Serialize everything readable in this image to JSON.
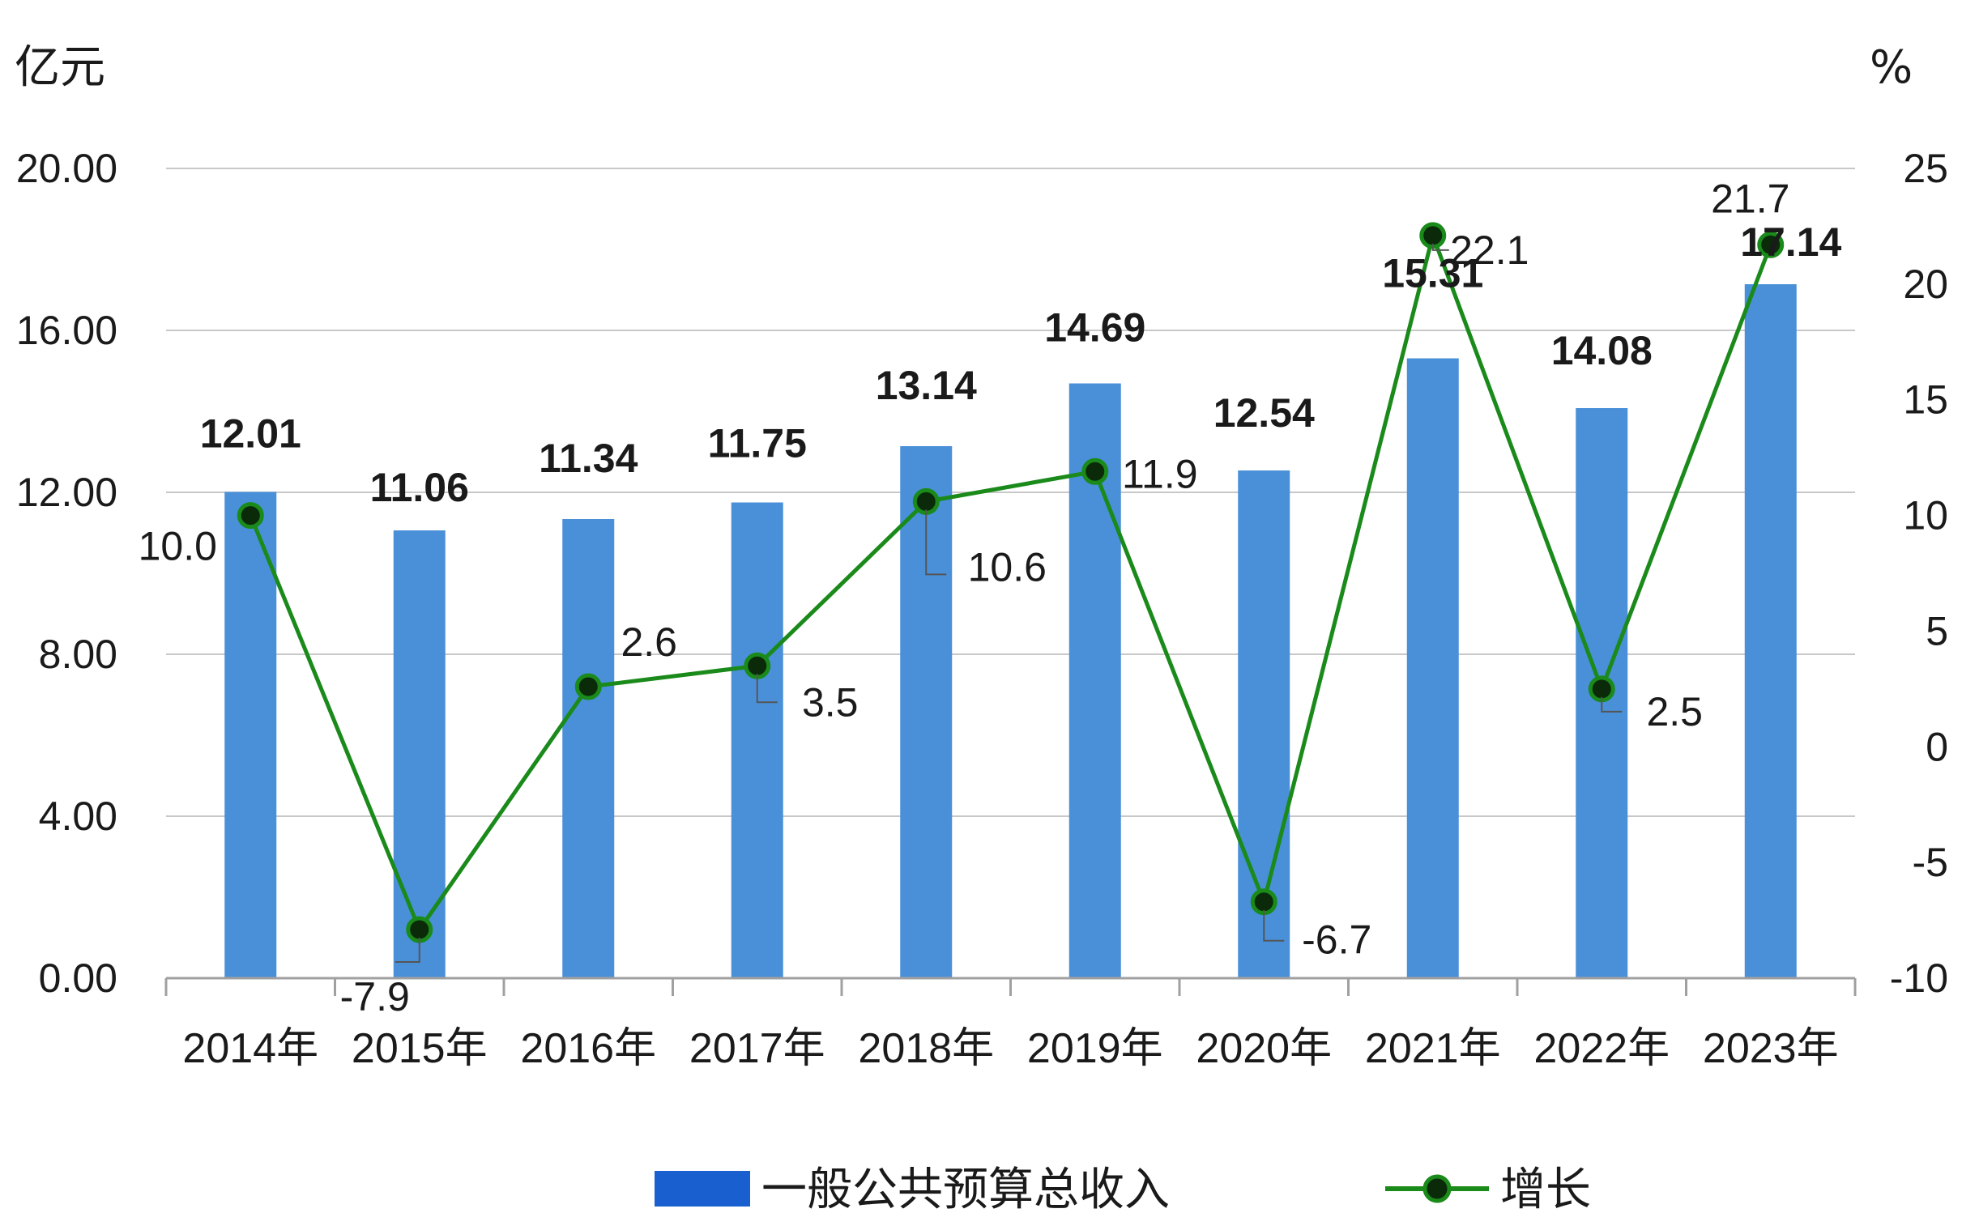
{
  "chart_data": {
    "type": "bar",
    "categories": [
      "2014年",
      "2015年",
      "2016年",
      "2017年",
      "2018年",
      "2019年",
      "2020年",
      "2021年",
      "2022年",
      "2023年"
    ],
    "series": [
      {
        "name": "一般公共预算总收入",
        "type": "bar",
        "axis": "left",
        "color": "#4a90d9",
        "values": [
          12.01,
          11.06,
          11.34,
          11.75,
          13.14,
          14.69,
          12.54,
          15.31,
          14.08,
          17.14
        ]
      },
      {
        "name": "增长",
        "type": "line",
        "axis": "right",
        "color": "#1a8a1a",
        "marker_color": "#0a2a0a",
        "values": [
          10.0,
          -7.9,
          2.6,
          3.5,
          10.6,
          11.9,
          -6.7,
          22.1,
          2.5,
          21.7
        ]
      }
    ],
    "y_left": {
      "unit": "亿元",
      "range": [
        0,
        20
      ],
      "ticks": [
        "0.00",
        "4.00",
        "8.00",
        "12.00",
        "16.00",
        "20.00"
      ],
      "tick_values": [
        0,
        4,
        8,
        12,
        16,
        20
      ]
    },
    "y_right": {
      "unit": "%",
      "range": [
        -10,
        25
      ],
      "ticks": [
        "-10",
        "-5",
        "0",
        "5",
        "10",
        "15",
        "20",
        "25"
      ],
      "tick_values": [
        -10,
        -5,
        0,
        5,
        10,
        15,
        20,
        25
      ]
    },
    "bar_labels": [
      "12.01",
      "11.06",
      "11.34",
      "11.75",
      "13.14",
      "14.69",
      "12.54",
      "15.31",
      "14.08",
      "17.14"
    ],
    "line_labels": [
      "10.0",
      "-7.9",
      "2.6",
      "3.5",
      "10.6",
      "11.9",
      "-6.7",
      "22.1",
      "2.5",
      "21.7"
    ],
    "grid": true,
    "legend": {
      "position": "bottom",
      "items": [
        "一般公共预算总收入",
        "增长"
      ]
    }
  }
}
